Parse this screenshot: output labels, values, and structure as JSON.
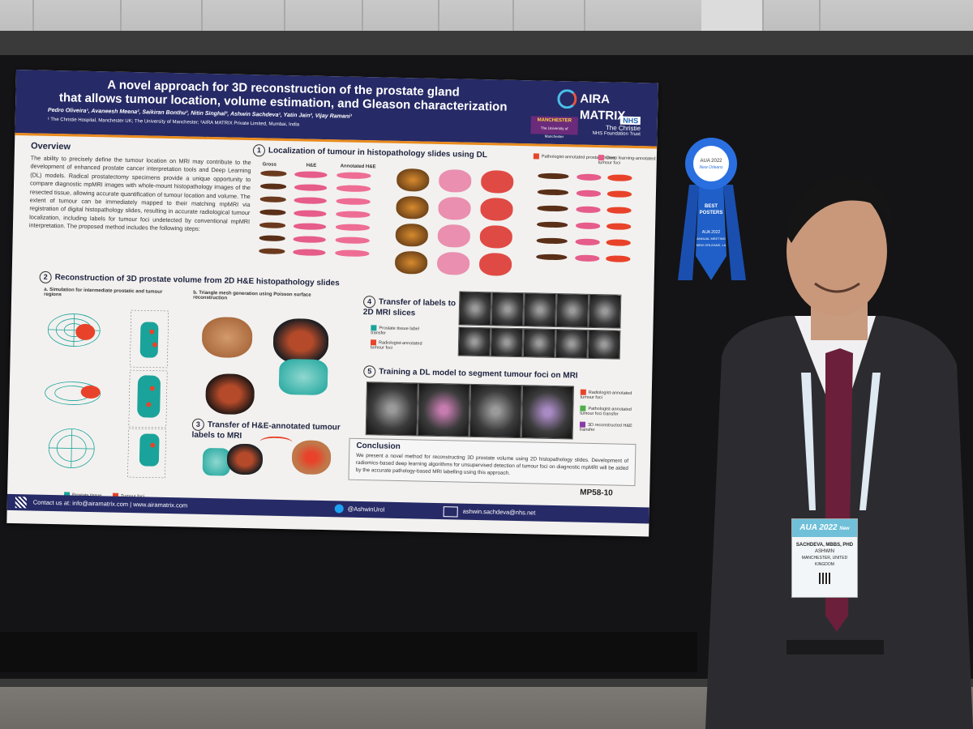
{
  "poster": {
    "title_line1": "A novel approach for 3D reconstruction of the prostate gland",
    "title_line2": "that allows tumour location, volume estimation, and Gleason characterization",
    "authors": "Pedro Oliveira¹, Avaneesh Meena², Saikiran Bonthu², Nitin Singhal², Ashwin Sachdeva¹, Yatin Jain², Vijay Ramani¹",
    "affiliations": "¹ The Christie Hospital, Manchester UK; The University of Manchester; ²AIRA MATRIX Private Limited, Mumbai, India",
    "logo_aira_line1": "AIRA",
    "logo_aira_line2": "MATRIX",
    "logo_manchester": "MANCHESTER",
    "logo_manchester_sub": "The University of Manchester",
    "logo_nhs": "NHS",
    "logo_christie": "The Christie",
    "logo_christie_sub": "NHS Foundation Trust",
    "overview_title": "Overview",
    "overview_text": "The ability to precisely define the tumour location on MRI may contribute to the development of enhanced prostate cancer interpretation tools and Deep Learning (DL) models. Radical prostatectomy specimens provide a unique opportunity to compare diagnostic mpMRI images with whole-mount histopathology images of the resected tissue, allowing accurate quantification of tumour location and volume. The extent of tumour can be immediately mapped to their matching mpMRI via registration of digital histopathology slides, resulting in accurate radiological tumour localization, including labels for tumour foci undetected by conventional mpMRI interpretation. The proposed method includes the following steps:",
    "s1_num": "1",
    "s1_title": "Localization of tumour in histopathology slides using DL",
    "s1_col_gross": "Gross",
    "s1_col_he": "H&E",
    "s1_col_annotated": "Annotated H&E",
    "s1_legend_path": "Pathologist-annotated prostate tissue",
    "s1_legend_dl": "Deep learning-annotated tumour foci",
    "s2_num": "2",
    "s2_title": "Reconstruction of 3D prostate volume from 2D H&E histopathology slides",
    "s2_a": "a. Simulation for intermediate prostatic and tumour regions",
    "s2_b": "b. Triangle mesh generation using Poisson surface reconstruction",
    "s2_legend_prostate": "Prostate tissue",
    "s2_legend_tumour": "Tumour foci",
    "s3_num": "3",
    "s3_title": "Transfer of H&E-annotated tumour labels to MRI",
    "s4_num": "4",
    "s4_title": "Transfer of labels to 2D MRI slices",
    "s4_legend_prostate": "Prostate tissue label transfer",
    "s4_legend_radio": "Radiologist-annotated tumour foci",
    "s5_num": "5",
    "s5_title": "Training a DL model to segment tumour foci on MRI",
    "s5_legend_radio": "Radiologist-annotated tumour foci",
    "s5_legend_path": "Pathologist-annotated tumour foci transfer",
    "s5_legend_3d": "3D reconstructed H&E transfer",
    "conclusion_title": "Conclusion",
    "conclusion_text": "We present a novel method for reconstructing 3D prostate volume using 2D histopathology slides. Development of radiomics-based deep learning algorithms for unsupervised detection of tumour foci on diagnostic mpMRI will be aided by the accurate pathology-based MRI labelling using this approach.",
    "contact": "Contact us at: info@airamatrix.com | www.airamatrix.com",
    "twitter": "@AshwinUrol",
    "email": "ashwin.sachdeva@nhs.net",
    "code": "MP58-10"
  },
  "ribbon": {
    "rosette_top": "AUA 2022",
    "rosette_sub": "New Orleans",
    "label1": "BEST",
    "label2": "POSTERS",
    "label3": "AUA 2022",
    "label4": "ANNUAL MEETING",
    "label5": "NEW ORLEANS, LA",
    "color": "#1f5fc7"
  },
  "badge": {
    "header": "AUA 2022",
    "header_sub": "New Orleans",
    "name": "SACHDEVA, MBBS, PHD",
    "first": "ASHWIN",
    "location": "MANCHESTER, UNITED KINGDOM"
  },
  "colors": {
    "poster_header": "#262a66",
    "accent_orange": "#e98a1c",
    "teal": "#1aa39a",
    "tumour_red": "#e8432a",
    "pink": "#e65c8a"
  }
}
